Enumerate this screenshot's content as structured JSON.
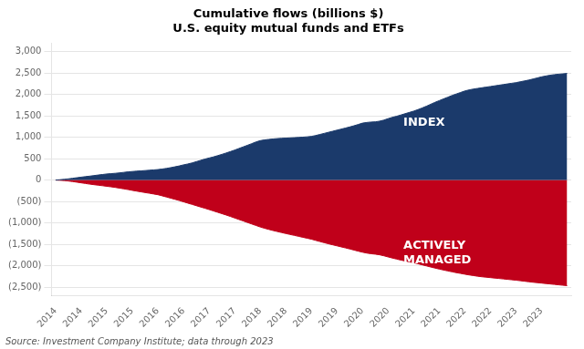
{
  "chart_data": {
    "type": "area",
    "title": "Cumulative flows (billions $)\nU.S. equity mutual funds and ETFs",
    "annotations": [
      {
        "text": "INDEX",
        "x": 2020.8,
        "y": 1350
      },
      {
        "text": "ACTIVELY\nMANAGED",
        "x": 2020.8,
        "y": -1700
      },
      {
        "text": "Source: Investment Company Institute; data through 2023"
      }
    ],
    "x": [
      2014.0,
      2014.083,
      2014.167,
      2014.25,
      2014.333,
      2014.417,
      2014.5,
      2014.583,
      2014.667,
      2014.75,
      2014.833,
      2014.917,
      2015.0,
      2015.083,
      2015.167,
      2015.25,
      2015.333,
      2015.417,
      2015.5,
      2015.583,
      2015.667,
      2015.75,
      2015.833,
      2015.917,
      2016.0,
      2016.083,
      2016.167,
      2016.25,
      2016.333,
      2016.417,
      2016.5,
      2016.583,
      2016.667,
      2016.75,
      2016.833,
      2016.917,
      2017.0,
      2017.083,
      2017.167,
      2017.25,
      2017.333,
      2017.417,
      2017.5,
      2017.583,
      2017.667,
      2017.75,
      2017.833,
      2017.917,
      2018.0,
      2018.083,
      2018.167,
      2018.25,
      2018.333,
      2018.417,
      2018.5,
      2018.583,
      2018.667,
      2018.75,
      2018.833,
      2018.917,
      2019.0,
      2019.083,
      2019.167,
      2019.25,
      2019.333,
      2019.417,
      2019.5,
      2019.583,
      2019.667,
      2019.75,
      2019.833,
      2019.917,
      2020.0,
      2020.083,
      2020.167,
      2020.25,
      2020.333,
      2020.417,
      2020.5,
      2020.583,
      2020.667,
      2020.75,
      2020.833,
      2020.917,
      2021.0,
      2021.083,
      2021.167,
      2021.25,
      2021.333,
      2021.417,
      2021.5,
      2021.583,
      2021.667,
      2021.75,
      2021.833,
      2021.917,
      2022.0,
      2022.083,
      2022.167,
      2022.25,
      2022.333,
      2022.417,
      2022.5,
      2022.583,
      2022.667,
      2022.75,
      2022.833,
      2022.917,
      2023.0,
      2023.083,
      2023.167,
      2023.25,
      2023.333,
      2023.417,
      2023.5,
      2023.583,
      2023.667,
      2023.75,
      2023.833,
      2023.917,
      2024.0
    ],
    "series": [
      {
        "color": "#1B3A6B",
        "values": [
          0,
          8,
          18,
          28,
          42,
          55,
          68,
          80,
          92,
          105,
          118,
          130,
          142,
          150,
          158,
          168,
          180,
          192,
          200,
          208,
          215,
          222,
          230,
          238,
          245,
          258,
          272,
          290,
          310,
          330,
          355,
          375,
          400,
          430,
          460,
          490,
          515,
          540,
          570,
          600,
          632,
          665,
          700,
          738,
          775,
          812,
          850,
          890,
          920,
          938,
          950,
          960,
          968,
          975,
          980,
          985,
          990,
          996,
          1002,
          1010,
          1020,
          1040,
          1065,
          1090,
          1115,
          1140,
          1165,
          1190,
          1215,
          1240,
          1268,
          1298,
          1330,
          1345,
          1355,
          1360,
          1375,
          1400,
          1435,
          1465,
          1490,
          1520,
          1550,
          1580,
          1610,
          1645,
          1685,
          1725,
          1770,
          1815,
          1855,
          1895,
          1935,
          1975,
          2010,
          2045,
          2080,
          2105,
          2125,
          2140,
          2155,
          2170,
          2185,
          2200,
          2215,
          2230,
          2245,
          2260,
          2275,
          2295,
          2315,
          2335,
          2360,
          2385,
          2410,
          2430,
          2448,
          2462,
          2472,
          2480,
          2490
        ]
      },
      {
        "color": "#C0001A",
        "values": [
          0,
          -5,
          -12,
          -22,
          -35,
          -50,
          -65,
          -80,
          -95,
          -108,
          -120,
          -132,
          -145,
          -158,
          -172,
          -188,
          -205,
          -222,
          -240,
          -258,
          -275,
          -292,
          -308,
          -325,
          -342,
          -368,
          -395,
          -422,
          -450,
          -478,
          -508,
          -538,
          -568,
          -598,
          -628,
          -658,
          -688,
          -720,
          -752,
          -784,
          -816,
          -850,
          -885,
          -920,
          -955,
          -990,
          -1025,
          -1060,
          -1095,
          -1125,
          -1152,
          -1178,
          -1202,
          -1225,
          -1248,
          -1270,
          -1292,
          -1314,
          -1336,
          -1358,
          -1380,
          -1408,
          -1436,
          -1462,
          -1488,
          -1512,
          -1536,
          -1560,
          -1584,
          -1608,
          -1634,
          -1660,
          -1685,
          -1705,
          -1720,
          -1730,
          -1745,
          -1768,
          -1795,
          -1820,
          -1845,
          -1868,
          -1890,
          -1910,
          -1930,
          -1955,
          -1980,
          -2005,
          -2030,
          -2055,
          -2078,
          -2100,
          -2122,
          -2142,
          -2162,
          -2180,
          -2198,
          -2215,
          -2230,
          -2245,
          -2258,
          -2268,
          -2278,
          -2288,
          -2298,
          -2308,
          -2318,
          -2328,
          -2338,
          -2350,
          -2362,
          -2374,
          -2386,
          -2396,
          -2406,
          -2416,
          -2426,
          -2436,
          -2446,
          -2456,
          -2465
        ]
      }
    ],
    "xlim": [
      2013.92,
      2024.08
    ],
    "xticks": [
      2014,
      {
        "value": 2014.5,
        "label": "2014"
      },
      2015,
      {
        "value": 2015.5,
        "label": "2015"
      },
      2016,
      {
        "value": 2016.5,
        "label": "2016"
      },
      2017,
      {
        "value": 2017.5,
        "label": "2017"
      },
      2018,
      {
        "value": 2018.5,
        "label": "2018"
      },
      2019,
      {
        "value": 2019.5,
        "label": "2019"
      },
      2020,
      {
        "value": 2020.5,
        "label": "2020"
      },
      2021,
      {
        "value": 2021.5,
        "label": "2021"
      },
      2022,
      {
        "value": 2022.5,
        "label": "2022"
      },
      2023,
      {
        "value": 2023.5,
        "label": "2023"
      },
      {
        "value": 2024,
        "label": null
      }
    ],
    "ylim": [
      -2700,
      3200
    ],
    "yticks": [
      {
        "value": 3000,
        "label": "3,000"
      },
      {
        "value": 2500,
        "label": "2,500"
      },
      {
        "value": 2000,
        "label": "2,000"
      },
      {
        "value": 1500,
        "label": "1,500"
      },
      {
        "value": 1000,
        "label": "1,000"
      },
      500,
      0,
      {
        "value": -500,
        "label": "(500)"
      },
      {
        "value": -1000,
        "label": "(1,000)"
      },
      {
        "value": -1500,
        "label": "(1,500)"
      },
      {
        "value": -2000,
        "label": "(2,000)"
      },
      {
        "value": -2500,
        "label": "(2,500)"
      }
    ],
    "grid": "y"
  }
}
